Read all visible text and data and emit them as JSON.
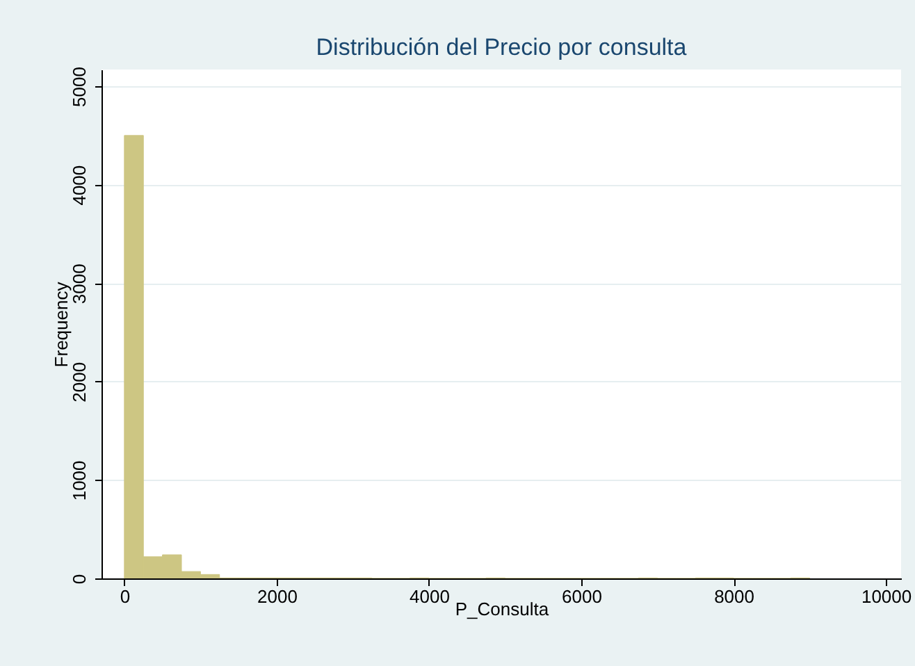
{
  "chart_data": {
    "type": "histogram",
    "title": "Distribución del Precio por consulta",
    "xlabel": "P_Consulta",
    "ylabel": "Frequency",
    "bins": [
      0,
      250,
      500,
      750,
      1000,
      1250,
      1500,
      1750,
      2000,
      2250,
      2500,
      2750,
      3000,
      3250,
      3500,
      3750,
      4000,
      4250,
      4500,
      4750,
      5000,
      5250,
      5500,
      5750,
      6000,
      6250,
      6500,
      6750,
      7000,
      7250,
      7500,
      7750,
      8000,
      8250,
      8500,
      8750,
      9000
    ],
    "values": [
      4500,
      220,
      240,
      70,
      40,
      5,
      5,
      5,
      5,
      5,
      5,
      5,
      5,
      0,
      0,
      5,
      0,
      0,
      0,
      5,
      0,
      0,
      0,
      0,
      0,
      0,
      0,
      5,
      0,
      0,
      5,
      5,
      0,
      0,
      0,
      5
    ],
    "color": "#cdc683",
    "xlim": [
      -300,
      10200
    ],
    "xticks": [
      0,
      2000,
      4000,
      6000,
      8000,
      10000
    ],
    "ylim": [
      0,
      5170
    ],
    "yticks": [
      0,
      1000,
      2000,
      3000,
      4000,
      5000
    ],
    "grid": "y"
  }
}
